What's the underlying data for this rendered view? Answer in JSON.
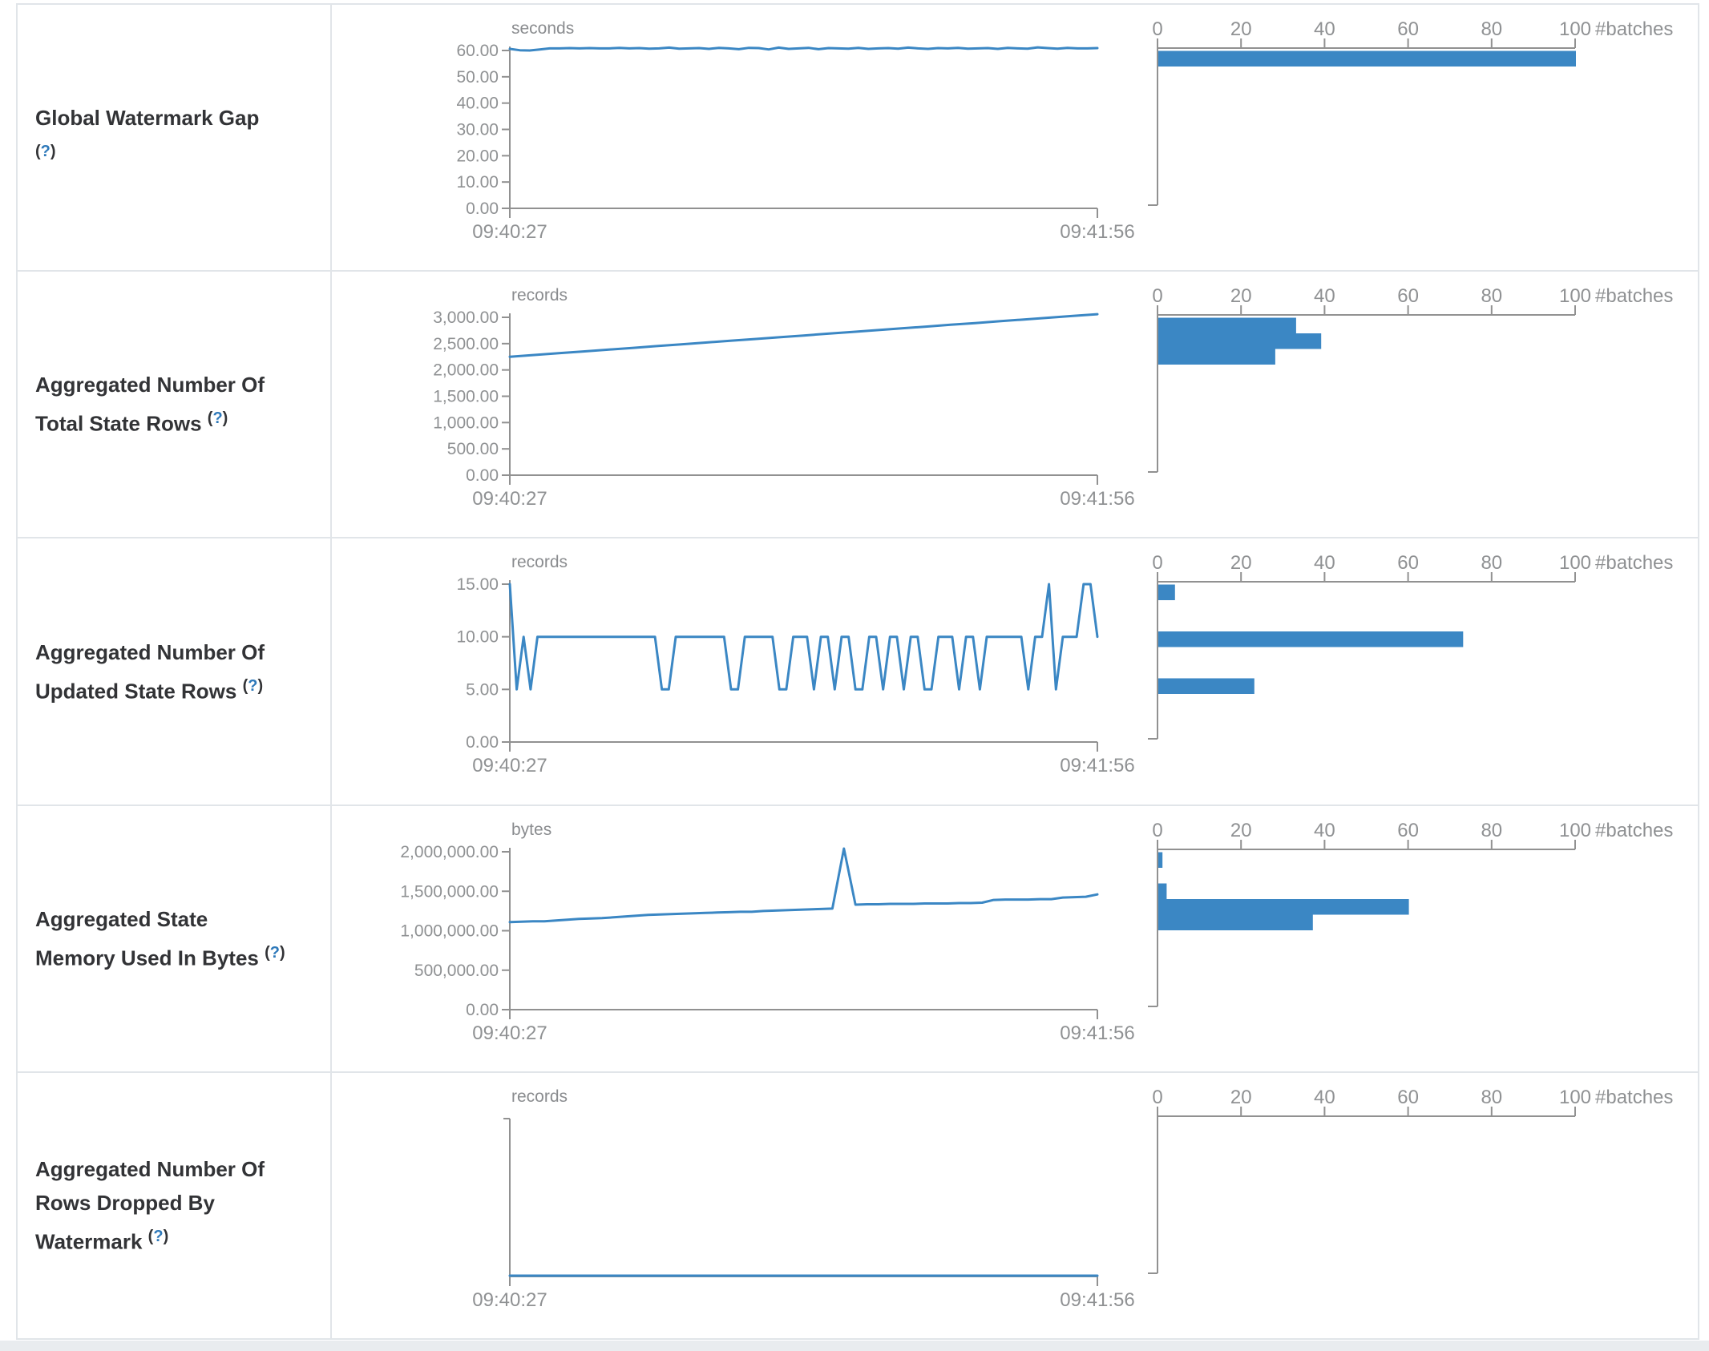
{
  "page": {
    "kind": "structured-streaming-query-statistics",
    "surface_color": "#ffffff",
    "bottom_strip_color": "#e9ecef"
  },
  "colors": {
    "accent": "#3b87c4",
    "axis": "#919191",
    "tick_label": "#8f9193",
    "unit_label": "#8a8c8f",
    "title_text": "#323336",
    "help_link": "#2e79ba",
    "border": "#e1e5e9"
  },
  "x_axis": {
    "start": "09:40:27",
    "end": "09:41:56"
  },
  "histogram_axis": {
    "ticks": [
      "0",
      "20",
      "40",
      "60",
      "80",
      "100"
    ],
    "max": 100,
    "label": "#batches",
    "bin_count": 10
  },
  "chart_data": {
    "note": "see rows[].timeline and rows[].histogram"
  },
  "rows": [
    {
      "title": "Global Watermark Gap",
      "help": {
        "pre": "(",
        "q": "?",
        "post": ")"
      },
      "timeline": {
        "type": "line",
        "unit": "seconds",
        "x_start": "09:40:27",
        "x_end": "09:41:56",
        "yticks": [
          "60.00",
          "50.00",
          "40.00",
          "30.00",
          "20.00",
          "10.00",
          "0.00"
        ],
        "ymax": 60,
        "values": [
          60.6,
          60.1,
          60.0,
          60.4,
          60.8,
          60.8,
          60.9,
          60.8,
          60.9,
          60.8,
          60.8,
          61.0,
          60.8,
          60.9,
          60.7,
          60.8,
          61.1,
          60.7,
          60.8,
          60.9,
          60.6,
          61.0,
          60.8,
          60.5,
          61.0,
          60.9,
          60.4,
          61.1,
          60.6,
          60.8,
          61.0,
          60.5,
          60.9,
          60.8,
          60.7,
          61.0,
          60.6,
          60.8,
          60.9,
          60.7,
          61.1,
          60.8,
          60.6,
          60.9,
          60.8,
          61.0,
          60.7,
          60.8,
          60.9,
          60.6,
          61.0,
          60.8,
          60.7,
          61.2,
          60.9,
          60.7,
          61.0,
          60.8,
          60.8,
          60.9
        ]
      },
      "histogram": {
        "type": "bar",
        "xlabel": "#batches",
        "bars": [
          {
            "bin": 0,
            "count": 100
          }
        ]
      }
    },
    {
      "title": "Aggregated Number Of Total State Rows",
      "help": {
        "pre": "(",
        "q": "?",
        "post": ")"
      },
      "timeline": {
        "type": "line",
        "unit": "records",
        "x_start": "09:40:27",
        "x_end": "09:41:56",
        "yticks": [
          "3,000.00",
          "2,500.00",
          "2,000.00",
          "1,500.00",
          "1,000.00",
          "500.00",
          "0.00"
        ],
        "ymax": 3000,
        "values": [
          2250,
          2284,
          2318,
          2351,
          2385,
          2419,
          2453,
          2486,
          2520,
          2554,
          2588,
          2621,
          2655,
          2689,
          2723,
          2756,
          2790,
          2824,
          2858,
          2891,
          2925,
          2959,
          2993,
          3026,
          3060
        ]
      },
      "histogram": {
        "type": "bar",
        "xlabel": "#batches",
        "bars": [
          {
            "bin": 0,
            "count": 33
          },
          {
            "bin": 1,
            "count": 39
          },
          {
            "bin": 2,
            "count": 28
          }
        ]
      }
    },
    {
      "title": "Aggregated Number Of Updated State Rows",
      "help": {
        "pre": "(",
        "q": "?",
        "post": ")"
      },
      "timeline": {
        "type": "line",
        "unit": "records",
        "x_start": "09:40:27",
        "x_end": "09:41:56",
        "yticks": [
          "15.00",
          "10.00",
          "5.00",
          "0.00"
        ],
        "ymax": 15,
        "values": [
          15,
          5,
          10,
          5,
          10,
          10,
          10,
          10,
          10,
          10,
          10,
          10,
          10,
          10,
          10,
          10,
          10,
          10,
          10,
          10,
          10,
          10,
          5,
          5,
          10,
          10,
          10,
          10,
          10,
          10,
          10,
          10,
          5,
          5,
          10,
          10,
          10,
          10,
          10,
          5,
          5,
          10,
          10,
          10,
          5,
          10,
          10,
          5,
          10,
          10,
          5,
          5,
          10,
          10,
          5,
          10,
          10,
          5,
          10,
          10,
          5,
          5,
          10,
          10,
          10,
          5,
          10,
          10,
          5,
          10,
          10,
          10,
          10,
          10,
          10,
          5,
          10,
          10,
          15,
          5,
          10,
          10,
          10,
          15,
          15,
          10
        ]
      },
      "histogram": {
        "type": "bar",
        "xlabel": "#batches",
        "bars": [
          {
            "bin": 0,
            "count": 4
          },
          {
            "bin": 3,
            "count": 73
          },
          {
            "bin": 6,
            "count": 23
          }
        ]
      }
    },
    {
      "title": "Aggregated State Memory Used In Bytes",
      "help": {
        "pre": "(",
        "q": "?",
        "post": ")"
      },
      "timeline": {
        "type": "line",
        "unit": "bytes",
        "x_start": "09:40:27",
        "x_end": "09:41:56",
        "yticks": [
          "2,000,000.00",
          "1,500,000.00",
          "1,000,000.00",
          "500,000.00",
          "0.00"
        ],
        "ymax": 2000000,
        "values": [
          1110000,
          1115000,
          1120000,
          1120000,
          1130000,
          1140000,
          1150000,
          1155000,
          1160000,
          1170000,
          1180000,
          1190000,
          1200000,
          1205000,
          1210000,
          1215000,
          1220000,
          1225000,
          1230000,
          1235000,
          1240000,
          1240000,
          1250000,
          1255000,
          1260000,
          1265000,
          1270000,
          1275000,
          1280000,
          2050000,
          1330000,
          1335000,
          1335000,
          1340000,
          1340000,
          1340000,
          1345000,
          1345000,
          1345000,
          1350000,
          1350000,
          1355000,
          1390000,
          1395000,
          1395000,
          1395000,
          1400000,
          1400000,
          1420000,
          1425000,
          1430000,
          1460000
        ]
      },
      "histogram": {
        "type": "bar",
        "xlabel": "#batches",
        "bars": [
          {
            "bin": 0,
            "count": 1
          },
          {
            "bin": 2,
            "count": 2
          },
          {
            "bin": 3,
            "count": 60
          },
          {
            "bin": 4,
            "count": 37
          }
        ]
      }
    },
    {
      "title": "Aggregated Number Of Rows Dropped By Watermark",
      "help": {
        "pre": "(",
        "q": "?",
        "post": ")"
      },
      "timeline": {
        "type": "line",
        "unit": "records",
        "x_start": "09:40:27",
        "x_end": "09:41:56",
        "yticks": [],
        "ymax": 1,
        "values": [
          0,
          0,
          0,
          0,
          0,
          0,
          0,
          0,
          0,
          0
        ]
      },
      "histogram": {
        "type": "bar",
        "xlabel": "#batches",
        "bars": []
      }
    }
  ]
}
